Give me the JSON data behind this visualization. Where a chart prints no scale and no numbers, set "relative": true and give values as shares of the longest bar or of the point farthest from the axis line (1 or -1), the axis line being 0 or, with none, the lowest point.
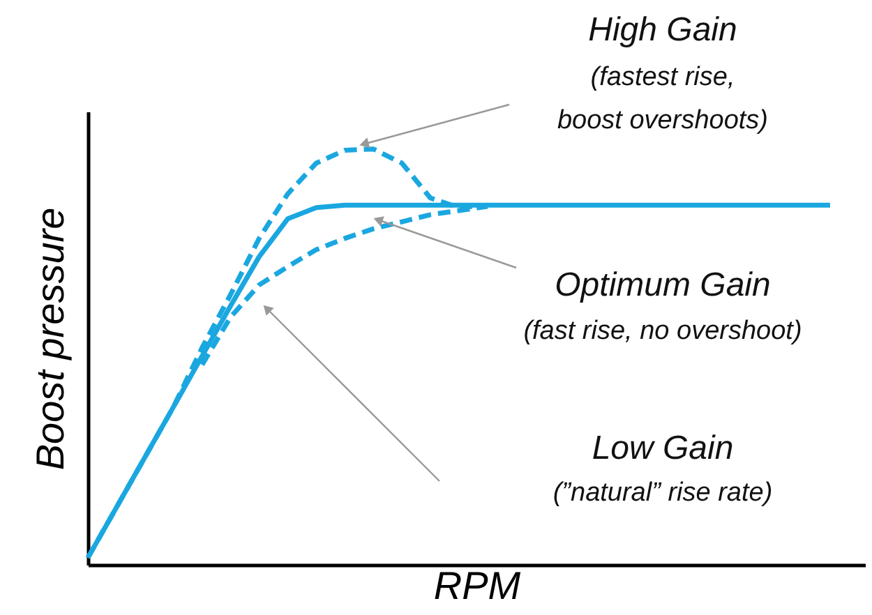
{
  "chart_data": {
    "type": "line",
    "relative": true,
    "xlabel": "RPM",
    "ylabel": "Boost pressure",
    "categories": [
      null,
      null,
      null,
      null,
      null,
      null,
      null,
      null,
      null,
      null,
      null,
      null,
      null,
      null,
      null,
      null,
      null,
      null,
      null,
      null,
      null,
      null,
      null,
      null,
      null,
      null,
      null
    ],
    "series": [
      {
        "color": "#1aa7e0",
        "line_style": "dashed",
        "values": [
          0.017,
          0.138,
          0.259,
          0.38,
          0.522,
          0.65,
          0.785,
          0.892,
          0.966,
          0.997,
          1.0,
          0.966,
          0.882,
          0.859,
          0.865,
          null,
          null,
          null,
          null,
          null,
          null,
          null,
          null,
          null,
          null,
          null,
          null
        ]
      },
      {
        "color": "#1aa7e0",
        "line_style": "solid",
        "values": [
          0.017,
          0.138,
          0.259,
          0.38,
          0.502,
          0.623,
          0.741,
          0.832,
          0.859,
          0.865,
          0.865,
          0.865,
          0.865,
          0.865,
          0.865,
          0.865,
          0.865,
          0.865,
          0.865,
          0.865,
          0.865,
          0.865,
          0.865,
          0.865,
          0.865,
          0.865,
          0.865
        ]
      },
      {
        "color": "#1aa7e0",
        "line_style": "dashed",
        "values": [
          null,
          null,
          null,
          null,
          0.481,
          0.596,
          0.673,
          0.717,
          0.758,
          0.785,
          0.808,
          0.825,
          0.842,
          0.852,
          0.862,
          null,
          null,
          null,
          null,
          null,
          null,
          null,
          null,
          null,
          null,
          null,
          null
        ]
      }
    ],
    "annotations": [
      "High Gain",
      "(fastest rise,",
      "boost overshoots)",
      "Optimum Gain",
      "(fast rise, no overshoot)",
      "Low Gain",
      "(”natural” rise rate)"
    ],
    "grid": false,
    "marker": "none"
  }
}
